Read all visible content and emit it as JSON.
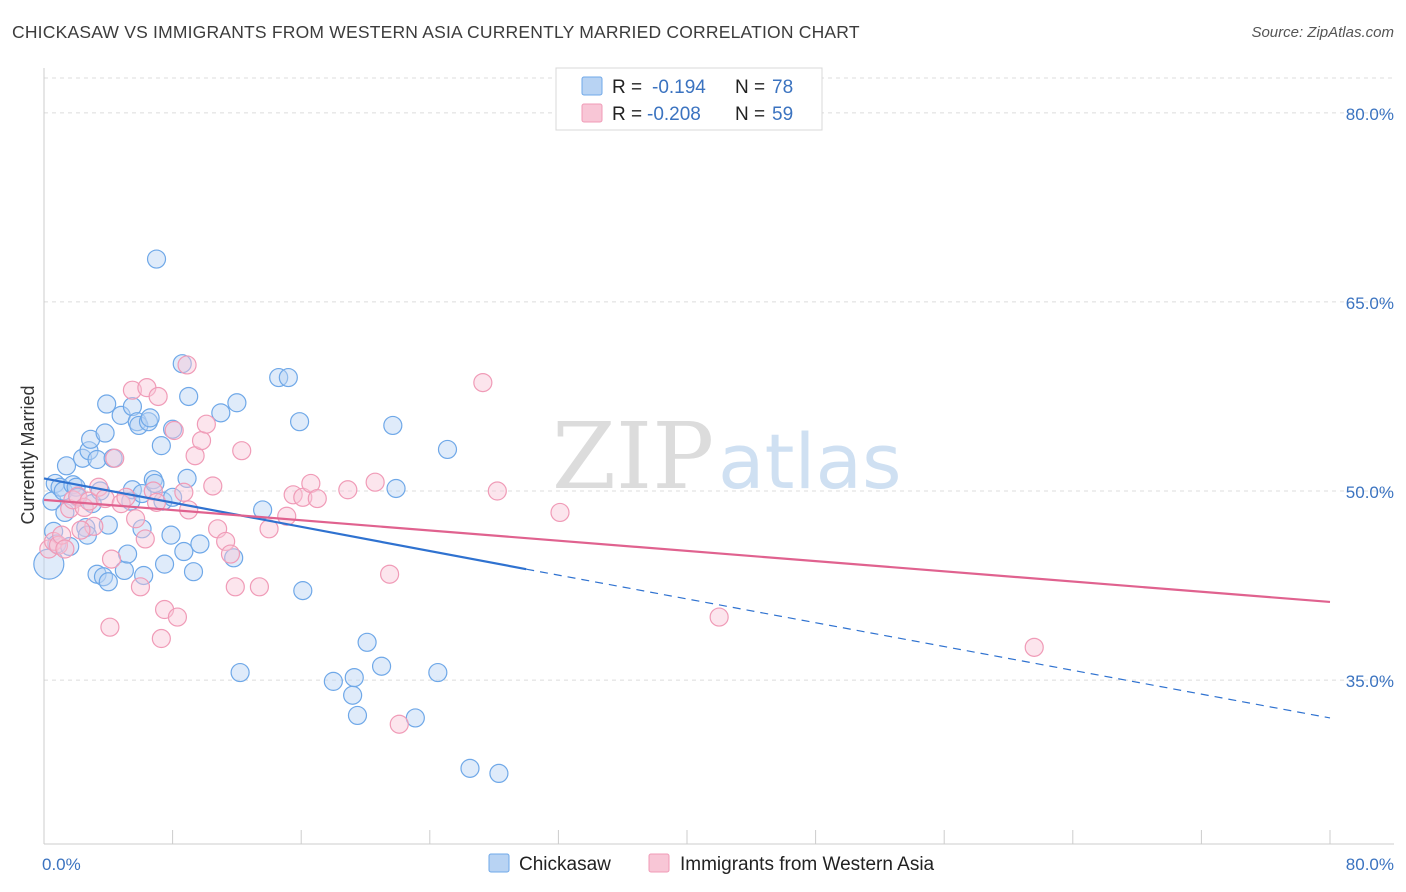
{
  "chart_data": {
    "type": "scatter",
    "title": "CHICKASAW VS IMMIGRANTS FROM WESTERN ASIA CURRENTLY MARRIED CORRELATION CHART",
    "source": "Source: ZipAtlas.com",
    "ylabel": "Currently Married",
    "xlabel": "",
    "xlim": [
      0,
      80
    ],
    "ylim": [
      22,
      83
    ],
    "x_tick_labels": [
      "0.0%",
      "80.0%"
    ],
    "y_ticks": [
      {
        "value": 80,
        "label": "80.0%"
      },
      {
        "value": 65,
        "label": "65.0%"
      },
      {
        "value": 50,
        "label": "50.0%"
      },
      {
        "value": 35,
        "label": "35.0%"
      }
    ],
    "grid": "horizontal-dashed",
    "legend_position": "top-center",
    "watermark": {
      "zip": "ZIP",
      "atlas": "atlas"
    },
    "stats": [
      {
        "r_label": "R =",
        "r_value": "-0.194",
        "n_label": "N =",
        "n_value": "78"
      },
      {
        "r_label": "R =",
        "r_value": "-0.208",
        "n_label": "N =",
        "n_value": "59"
      }
    ],
    "series": [
      {
        "name": "Chickasaw",
        "color": "#6fa8e8",
        "fill": "#b8d3f3",
        "trend_color": "#2f72d0",
        "trend": {
          "x0": 0,
          "y0": 51.0,
          "x1": 30,
          "y1": 43.8,
          "dash_to_x": 80,
          "dash_to_y": 32.0
        },
        "points": [
          [
            0.3,
            44.2
          ],
          [
            0.5,
            49.2
          ],
          [
            0.6,
            46.8
          ],
          [
            0.7,
            50.6
          ],
          [
            0.8,
            45.8
          ],
          [
            1.0,
            50.3
          ],
          [
            1.2,
            50.0
          ],
          [
            1.3,
            48.3
          ],
          [
            1.4,
            52.0
          ],
          [
            1.6,
            45.6
          ],
          [
            1.8,
            50.5
          ],
          [
            2.0,
            50.3
          ],
          [
            2.1,
            49.5
          ],
          [
            2.4,
            52.6
          ],
          [
            2.6,
            47.1
          ],
          [
            2.7,
            46.5
          ],
          [
            2.8,
            53.2
          ],
          [
            2.9,
            54.1
          ],
          [
            3.0,
            49.0
          ],
          [
            3.3,
            43.4
          ],
          [
            3.3,
            52.5
          ],
          [
            3.5,
            50.0
          ],
          [
            3.7,
            43.2
          ],
          [
            3.8,
            54.6
          ],
          [
            3.9,
            56.9
          ],
          [
            4.0,
            42.8
          ],
          [
            4.0,
            47.3
          ],
          [
            4.3,
            52.6
          ],
          [
            4.8,
            56.0
          ],
          [
            5.0,
            43.7
          ],
          [
            5.2,
            45.0
          ],
          [
            5.4,
            49.2
          ],
          [
            5.5,
            50.1
          ],
          [
            5.5,
            56.7
          ],
          [
            5.8,
            55.5
          ],
          [
            5.9,
            55.2
          ],
          [
            6.1,
            49.8
          ],
          [
            6.1,
            47.0
          ],
          [
            6.2,
            43.3
          ],
          [
            6.5,
            55.5
          ],
          [
            6.6,
            55.8
          ],
          [
            6.8,
            50.9
          ],
          [
            6.9,
            50.6
          ],
          [
            7.0,
            68.4
          ],
          [
            7.3,
            53.6
          ],
          [
            7.4,
            49.2
          ],
          [
            7.5,
            44.2
          ],
          [
            7.9,
            46.5
          ],
          [
            8.0,
            49.5
          ],
          [
            8.0,
            54.9
          ],
          [
            8.6,
            60.1
          ],
          [
            8.7,
            45.2
          ],
          [
            8.9,
            51.0
          ],
          [
            9.0,
            57.5
          ],
          [
            9.3,
            43.6
          ],
          [
            9.7,
            45.8
          ],
          [
            11.0,
            56.2
          ],
          [
            12.0,
            57.0
          ],
          [
            11.8,
            44.7
          ],
          [
            12.2,
            35.6
          ],
          [
            13.6,
            48.5
          ],
          [
            14.6,
            59.0
          ],
          [
            15.2,
            59.0
          ],
          [
            15.9,
            55.5
          ],
          [
            16.1,
            42.1
          ],
          [
            18.0,
            34.9
          ],
          [
            19.2,
            33.8
          ],
          [
            19.3,
            35.2
          ],
          [
            19.5,
            32.2
          ],
          [
            20.1,
            38.0
          ],
          [
            21.0,
            36.1
          ],
          [
            21.7,
            55.2
          ],
          [
            21.9,
            50.2
          ],
          [
            23.1,
            32.0
          ],
          [
            24.5,
            35.6
          ],
          [
            25.1,
            53.3
          ],
          [
            26.5,
            28.0
          ],
          [
            28.3,
            27.6
          ]
        ]
      },
      {
        "name": "Immigrants from Western Asia",
        "color": "#f09bb7",
        "fill": "#f8c6d6",
        "trend_color": "#e0628f",
        "trend": {
          "x0": 0,
          "y0": 49.3,
          "x1": 80,
          "y1": 41.2
        },
        "points": [
          [
            0.3,
            45.4
          ],
          [
            0.6,
            46.0
          ],
          [
            0.9,
            45.7
          ],
          [
            1.1,
            46.5
          ],
          [
            1.3,
            45.4
          ],
          [
            1.6,
            48.6
          ],
          [
            1.8,
            49.3
          ],
          [
            2.1,
            49.6
          ],
          [
            2.5,
            48.7
          ],
          [
            2.8,
            49.2
          ],
          [
            3.1,
            47.2
          ],
          [
            3.4,
            50.3
          ],
          [
            3.8,
            49.4
          ],
          [
            4.1,
            39.2
          ],
          [
            4.2,
            44.6
          ],
          [
            4.4,
            52.6
          ],
          [
            4.8,
            49.0
          ],
          [
            5.1,
            49.5
          ],
          [
            5.5,
            58.0
          ],
          [
            5.7,
            47.8
          ],
          [
            6.0,
            42.4
          ],
          [
            6.3,
            46.2
          ],
          [
            6.4,
            58.2
          ],
          [
            6.8,
            50.0
          ],
          [
            7.1,
            57.5
          ],
          [
            7.3,
            38.3
          ],
          [
            7.5,
            40.6
          ],
          [
            8.1,
            54.8
          ],
          [
            8.3,
            40.0
          ],
          [
            8.7,
            49.9
          ],
          [
            8.9,
            60.0
          ],
          [
            9.0,
            48.5
          ],
          [
            9.4,
            52.8
          ],
          [
            9.8,
            54.0
          ],
          [
            10.1,
            55.3
          ],
          [
            10.5,
            50.4
          ],
          [
            10.8,
            47.0
          ],
          [
            11.3,
            46.0
          ],
          [
            11.6,
            45.0
          ],
          [
            11.9,
            42.4
          ],
          [
            12.3,
            53.2
          ],
          [
            13.4,
            42.4
          ],
          [
            14.0,
            47.0
          ],
          [
            15.1,
            48.0
          ],
          [
            15.5,
            49.7
          ],
          [
            16.1,
            49.5
          ],
          [
            16.6,
            50.6
          ],
          [
            17.0,
            49.4
          ],
          [
            18.9,
            50.1
          ],
          [
            20.6,
            50.7
          ],
          [
            21.5,
            43.4
          ],
          [
            22.1,
            31.5
          ],
          [
            27.3,
            58.6
          ],
          [
            28.2,
            50.0
          ],
          [
            32.1,
            48.3
          ],
          [
            42.0,
            40.0
          ],
          [
            61.6,
            37.6
          ],
          [
            2.3,
            46.9
          ],
          [
            7.0,
            49.1
          ]
        ]
      }
    ]
  }
}
